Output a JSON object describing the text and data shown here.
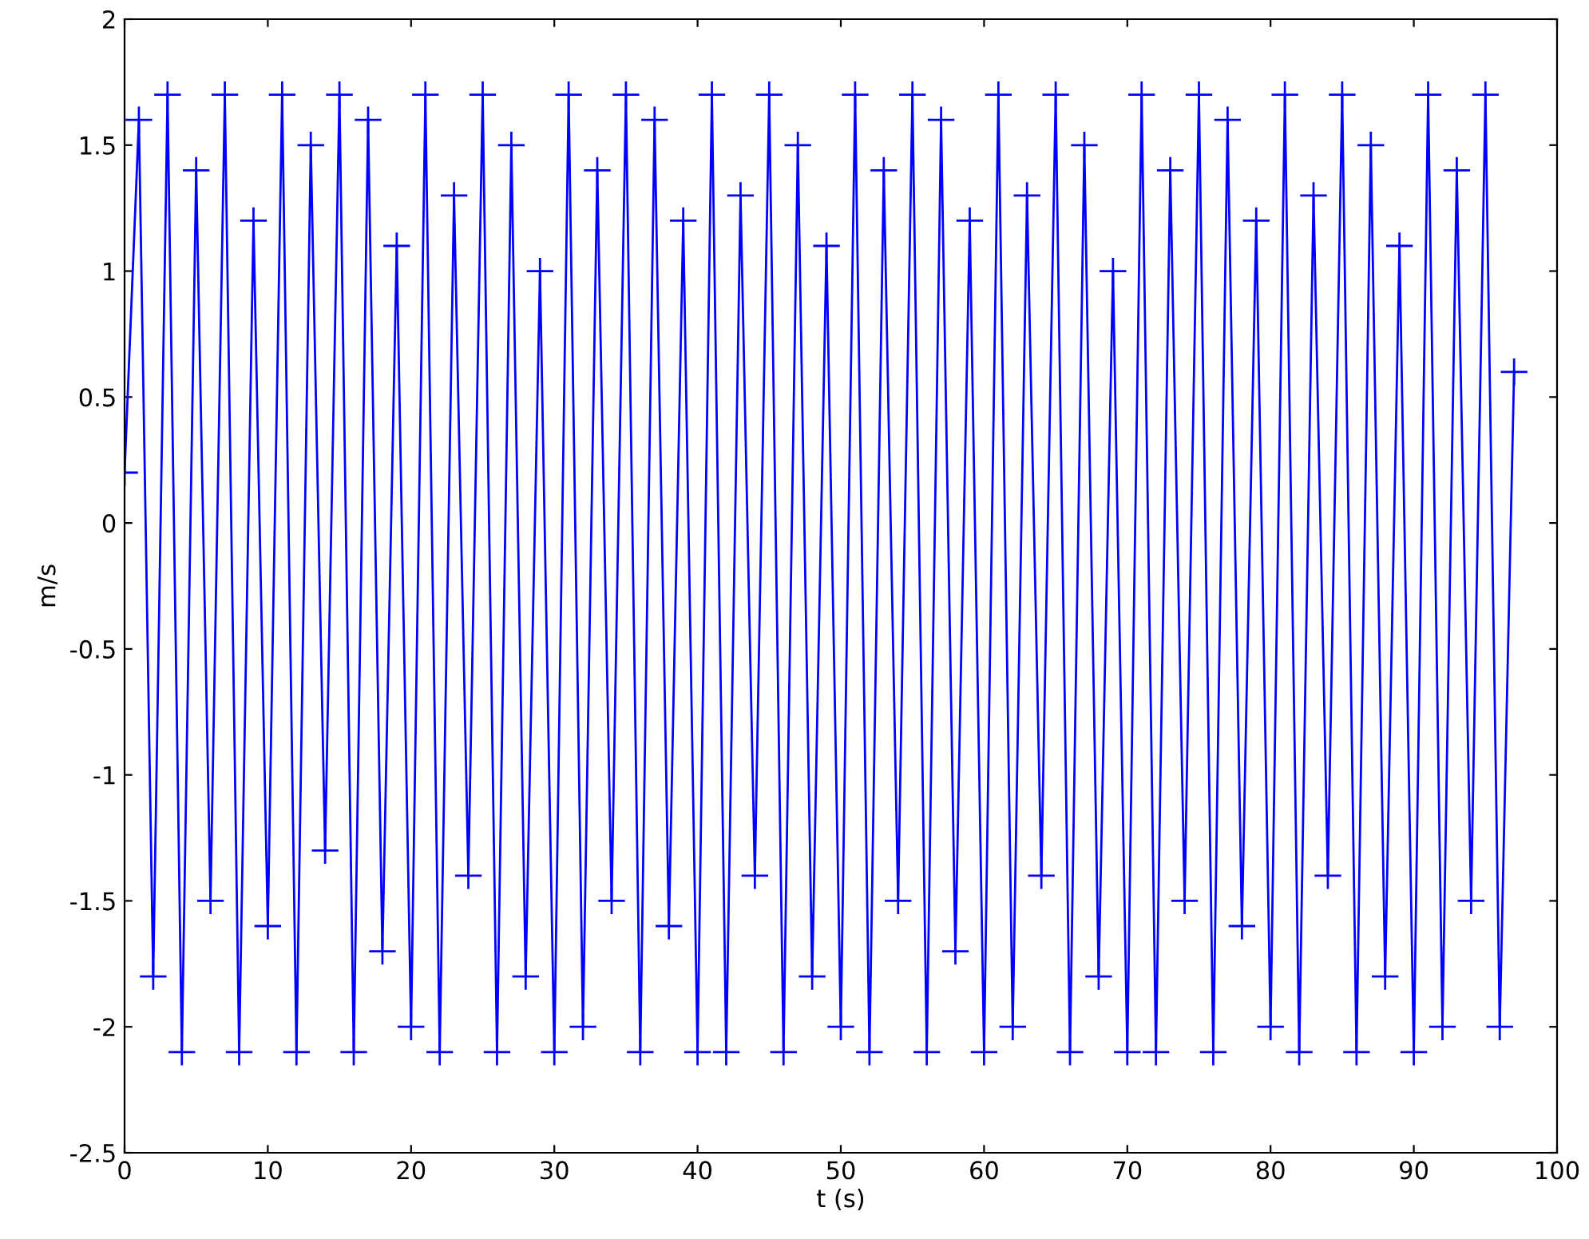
{
  "chart_data": {
    "type": "line",
    "xlabel": "t (s)",
    "ylabel": "m/s",
    "xlim": [
      0,
      100
    ],
    "ylim": [
      -2.5,
      2
    ],
    "xticks": [
      0,
      10,
      20,
      30,
      40,
      50,
      60,
      70,
      80,
      90,
      100
    ],
    "yticks": [
      -2.5,
      -2,
      -1.5,
      -1,
      -0.5,
      0,
      0.5,
      1,
      1.5,
      2
    ],
    "marker": "cross",
    "line_style": "solid",
    "grid": false,
    "legend": false,
    "series": [
      {
        "color": "#0000ff",
        "x": [
          0,
          1,
          2,
          3,
          4,
          5,
          6,
          7,
          8,
          9,
          10,
          11,
          12,
          13,
          14,
          15,
          16,
          17,
          18,
          19,
          20,
          21,
          22,
          23,
          24,
          25,
          26,
          27,
          28,
          29,
          30,
          31,
          32,
          33,
          34,
          35,
          36,
          37,
          38,
          39,
          40,
          41,
          42,
          43,
          44,
          45,
          46,
          47,
          48,
          49,
          50,
          51,
          52,
          53,
          54,
          55,
          56,
          57,
          58,
          59,
          60,
          61,
          62,
          63,
          64,
          65,
          66,
          67,
          68,
          69,
          70,
          71,
          72,
          73,
          74,
          75,
          76,
          77,
          78,
          79,
          80,
          81,
          82,
          83,
          84,
          85,
          86,
          87,
          88,
          89,
          90,
          91,
          92,
          93,
          94,
          95,
          96,
          97
        ],
        "values": [
          0.2,
          1.6,
          -1.8,
          1.7,
          -2.1,
          1.4,
          -1.5,
          1.7,
          -2.1,
          1.2,
          -1.6,
          1.7,
          -2.1,
          1.5,
          -1.3,
          1.7,
          -2.1,
          1.6,
          -1.7,
          1.1,
          -2.0,
          1.7,
          -2.1,
          1.3,
          -1.4,
          1.7,
          -2.1,
          1.5,
          -1.8,
          1.0,
          -2.1,
          1.7,
          -2.0,
          1.4,
          -1.5,
          1.7,
          -2.1,
          1.6,
          -1.6,
          1.2,
          -2.1,
          1.7,
          -2.1,
          1.3,
          -1.4,
          1.7,
          -2.1,
          1.5,
          -1.8,
          1.1,
          -2.0,
          1.7,
          -2.1,
          1.4,
          -1.5,
          1.7,
          -2.1,
          1.6,
          -1.7,
          1.2,
          -2.1,
          1.7,
          -2.0,
          1.3,
          -1.4,
          1.7,
          -2.1,
          1.5,
          -1.8,
          1.0,
          -2.1,
          1.7,
          -2.1,
          1.4,
          -1.5,
          1.7,
          -2.1,
          1.6,
          -1.6,
          1.2,
          -2.0,
          1.7,
          -2.1,
          1.3,
          -1.4,
          1.7,
          -2.1,
          1.5,
          -1.8,
          1.1,
          -2.1,
          1.7,
          -2.0,
          1.4,
          -1.5,
          1.7,
          -2.0,
          0.6
        ]
      }
    ]
  }
}
